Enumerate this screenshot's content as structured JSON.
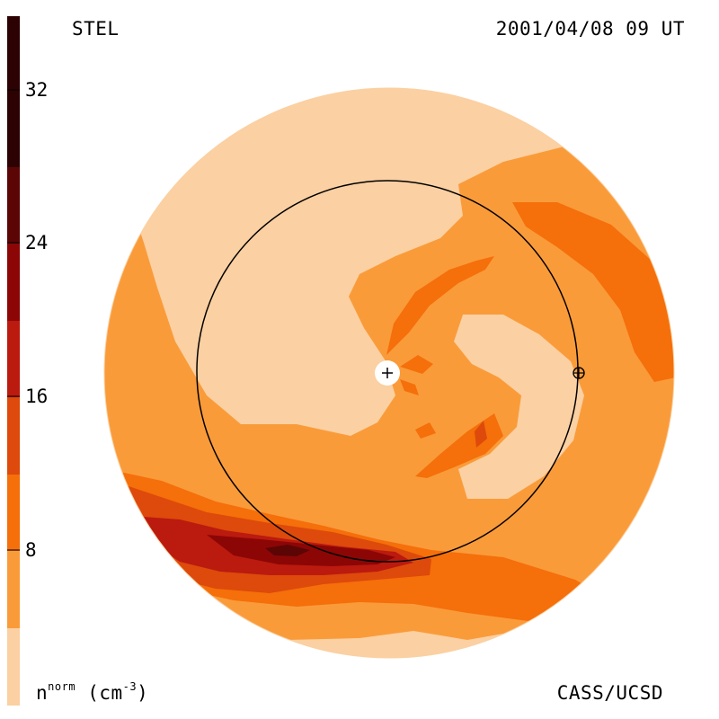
{
  "header": {
    "instrument": "STEL",
    "timestamp": "2001/04/08 09 UT"
  },
  "footer": {
    "credit": "CASS/UCSD",
    "unit_base": "n",
    "unit_sup": "norm",
    "unit_rest": " (cm",
    "unit_exp": "-3",
    "unit_close": ")"
  },
  "colorbar": {
    "ticks": [
      "8",
      "16",
      "24",
      "32"
    ],
    "colors": [
      "#fbd0a2",
      "#fa9b3a",
      "#f56f0a",
      "#dd4a0b",
      "#bb1a0f",
      "#8c0606",
      "#5c0505",
      "#2c0202"
    ]
  },
  "map": {
    "background_color": "#fbd0a2",
    "sun_symbol": "+",
    "earth_symbol": "⊕"
  }
}
